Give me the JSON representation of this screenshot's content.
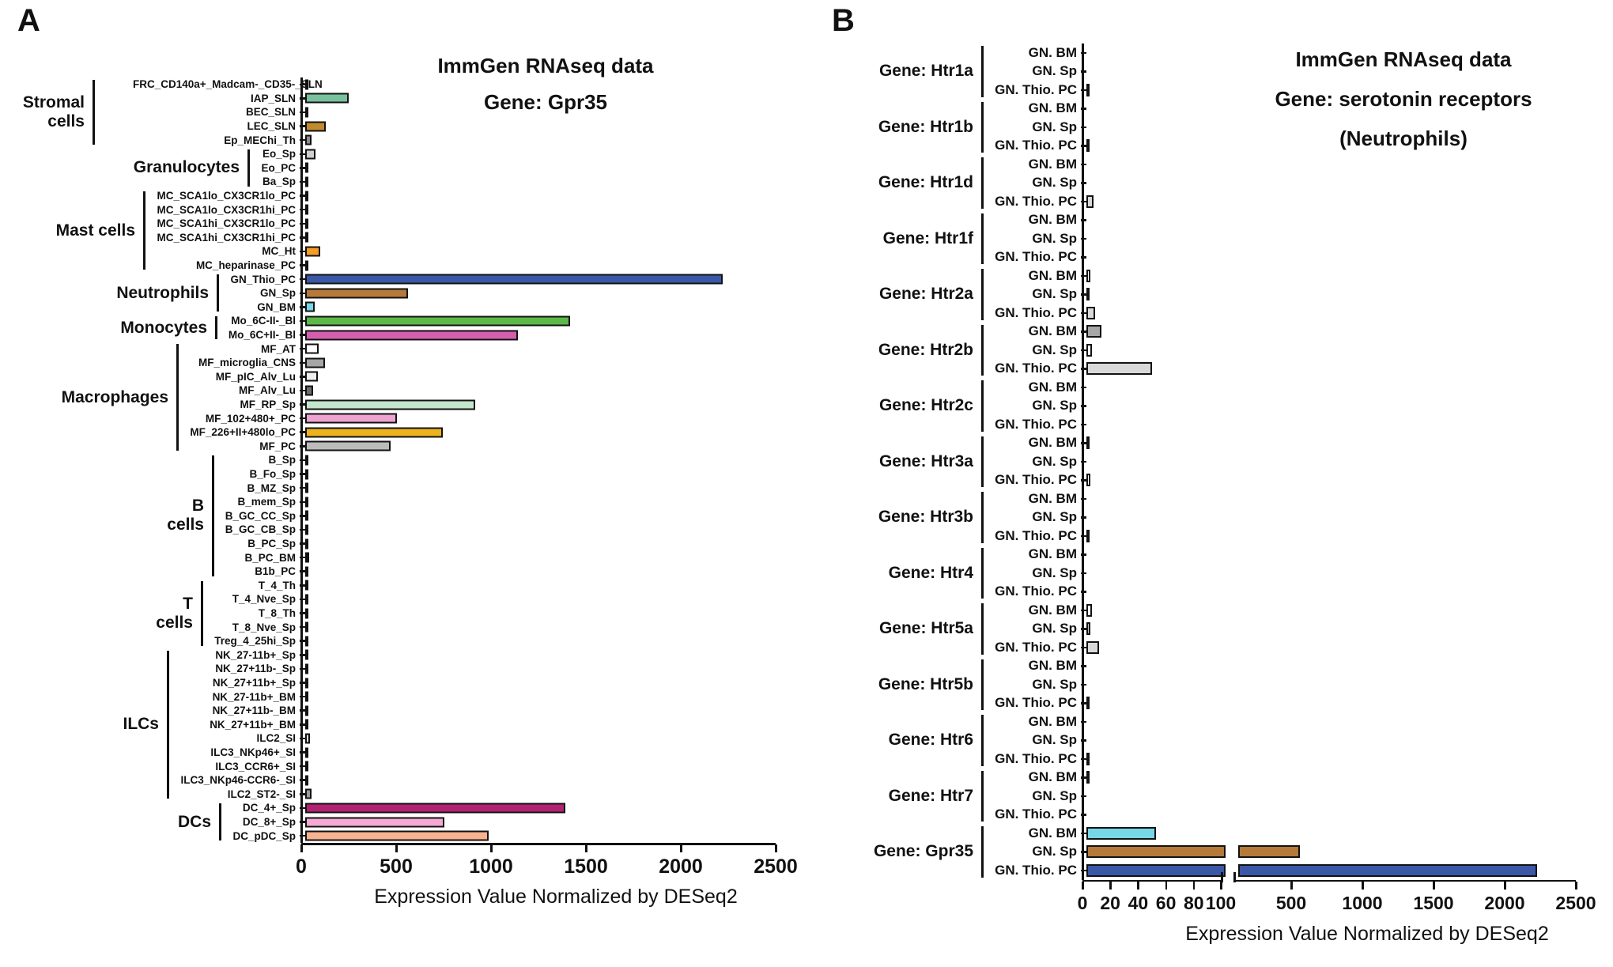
{
  "figure": {
    "background": "#ffffff",
    "axis_color": "#111111"
  },
  "chart_data": [
    {
      "type": "bar",
      "panel_letter": "A",
      "orientation": "horizontal",
      "title_lines": [
        "ImmGen RNAseq data",
        "Gene: Gpr35"
      ],
      "xlabel": "Expression Value Normalized by DESeq2",
      "xlim": [
        0,
        2500
      ],
      "xticks": [
        0,
        500,
        1000,
        1500,
        2000,
        2500
      ],
      "grid": false,
      "groups": [
        {
          "label": "Stromal cells",
          "label_lines": [
            "Stromal",
            "cells"
          ],
          "rows": [
            {
              "label": "FRC_CD140a+_Madcam-_CD35-_SLN",
              "value": 3,
              "color": "#121212"
            },
            {
              "label": "IAP_SLN",
              "value": 230,
              "color": "#79c19e"
            },
            {
              "label": "BEC_SLN",
              "value": 17,
              "color": "#121212"
            },
            {
              "label": "LEC_SLN",
              "value": 107,
              "color": "#c18a2e"
            },
            {
              "label": "Ep_MEChi_Th",
              "value": 33,
              "color": "#8f8f8f"
            }
          ]
        },
        {
          "label": "Granulocytes",
          "label_lines": [
            "Granulocytes"
          ],
          "rows": [
            {
              "label": "Eo_Sp",
              "value": 54,
              "color": "#cfcfcf"
            },
            {
              "label": "Eo_PC",
              "value": 2,
              "color": "#121212"
            },
            {
              "label": "Ba_Sp",
              "value": 2,
              "color": "#121212"
            }
          ]
        },
        {
          "label": "Mast cells",
          "label_lines": [
            "Mast cells"
          ],
          "rows": [
            {
              "label": "MC_SCA1lo_CX3CR1lo_PC",
              "value": 13,
              "color": "#a5682c"
            },
            {
              "label": "MC_SCA1lo_CX3CR1hi_PC",
              "value": 4,
              "color": "#121212"
            },
            {
              "label": "MC_SCA1hi_CX3CR1lo_PC",
              "value": 2,
              "color": "#121212"
            },
            {
              "label": "MC_SCA1hi_CX3CR1hi_PC",
              "value": 5,
              "color": "#121212"
            },
            {
              "label": "MC_Ht",
              "value": 80,
              "color": "#f59d27"
            },
            {
              "label": "MC_heparinase_PC",
              "value": 6,
              "color": "#121212"
            }
          ]
        },
        {
          "label": "Neutrophils",
          "label_lines": [
            "Neutrophils"
          ],
          "rows": [
            {
              "label": "GN_Thio_PC",
              "value": 2200,
              "color": "#3a57a8"
            },
            {
              "label": "GN_Sp",
              "value": 540,
              "color": "#b5793a"
            },
            {
              "label": "GN_BM",
              "value": 50,
              "color": "#76d7e7"
            }
          ]
        },
        {
          "label": "Monocytes",
          "label_lines": [
            "Monocytes"
          ],
          "rows": [
            {
              "label": "Mo_6C-II-_Bl",
              "value": 1395,
              "color": "#5ab947"
            },
            {
              "label": "Mo_6C+II-_Bl",
              "value": 1120,
              "color": "#d55fae"
            }
          ]
        },
        {
          "label": "Macrophages",
          "label_lines": [
            "Macrophages"
          ],
          "rows": [
            {
              "label": "MF_AT",
              "value": 70,
              "color": "#ffffff"
            },
            {
              "label": "MF_microglia_CNS",
              "value": 105,
              "color": "#a6a6a6"
            },
            {
              "label": "MF_pIC_Alv_Lu",
              "value": 65,
              "color": "#efefef"
            },
            {
              "label": "MF_Alv_Lu",
              "value": 40,
              "color": "#6e6e6e"
            },
            {
              "label": "MF_RP_Sp",
              "value": 895,
              "color": "#c3e6cc"
            },
            {
              "label": "MF_102+480+_PC",
              "value": 485,
              "color": "#efa3d1"
            },
            {
              "label": "MF_226+II+480lo_PC",
              "value": 727,
              "color": "#edb31f"
            },
            {
              "label": "MF_PC",
              "value": 450,
              "color": "#bcbcbc"
            }
          ]
        },
        {
          "label": "B cells",
          "label_lines": [
            "B",
            "cells"
          ],
          "rows": [
            {
              "label": "B_Sp",
              "value": 1,
              "color": "#121212"
            },
            {
              "label": "B_Fo_Sp",
              "value": 1,
              "color": "#121212"
            },
            {
              "label": "B_MZ_Sp",
              "value": 2,
              "color": "#121212"
            },
            {
              "label": "B_mem_Sp",
              "value": 1,
              "color": "#121212"
            },
            {
              "label": "B_GC_CC_Sp",
              "value": 4,
              "color": "#121212"
            },
            {
              "label": "B_GC_CB_Sp",
              "value": 2,
              "color": "#121212"
            },
            {
              "label": "B_PC_Sp",
              "value": 1,
              "color": "#121212"
            },
            {
              "label": "B_PC_BM",
              "value": 20,
              "color": "#121212"
            },
            {
              "label": "B1b_PC",
              "value": 2,
              "color": "#121212"
            }
          ]
        },
        {
          "label": "T cells",
          "label_lines": [
            "T",
            "cells"
          ],
          "rows": [
            {
              "label": "T_4_Th",
              "value": 1,
              "color": "#121212"
            },
            {
              "label": "T_4_Nve_Sp",
              "value": 1,
              "color": "#121212"
            },
            {
              "label": "T_8_Th",
              "value": 1,
              "color": "#121212"
            },
            {
              "label": "T_8_Nve_Sp",
              "value": 1,
              "color": "#121212"
            },
            {
              "label": "Treg_4_25hi_Sp",
              "value": 1,
              "color": "#121212"
            }
          ]
        },
        {
          "label": "ILCs",
          "label_lines": [
            "ILCs"
          ],
          "rows": [
            {
              "label": "NK_27-11b+_Sp",
              "value": 1,
              "color": "#121212"
            },
            {
              "label": "NK_27+11b-_Sp",
              "value": 1,
              "color": "#121212"
            },
            {
              "label": "NK_27+11b+_Sp",
              "value": 1,
              "color": "#121212"
            },
            {
              "label": "NK_27-11b+_BM",
              "value": 1,
              "color": "#121212"
            },
            {
              "label": "NK_27+11b-_BM",
              "value": 1,
              "color": "#121212"
            },
            {
              "label": "NK_27+11b+_BM",
              "value": 1,
              "color": "#121212"
            },
            {
              "label": "ILC2_SI",
              "value": 25,
              "color": "#dedede"
            },
            {
              "label": "ILC3_NKp46+_SI",
              "value": 12,
              "color": "#121212"
            },
            {
              "label": "ILC3_CCR6+_SI",
              "value": 2,
              "color": "#121212"
            },
            {
              "label": "ILC3_NKp46-CCR6-_SI",
              "value": 2,
              "color": "#121212"
            },
            {
              "label": "ILC2_ST2-_SI",
              "value": 35,
              "color": "#9b9b9b"
            }
          ]
        },
        {
          "label": "DCs",
          "label_lines": [
            "DCs"
          ],
          "rows": [
            {
              "label": "DC_4+_Sp",
              "value": 1370,
              "color": "#b32271"
            },
            {
              "label": "DC_8+_Sp",
              "value": 735,
              "color": "#f5a9d3"
            },
            {
              "label": "DC_pDC_Sp",
              "value": 965,
              "color": "#f7b28f"
            }
          ]
        }
      ]
    },
    {
      "type": "bar",
      "panel_letter": "B",
      "orientation": "horizontal",
      "title_lines": [
        "ImmGen RNAseq data",
        "Gene: serotonin receptors",
        "(Neutrophils)"
      ],
      "xlabel": "Expression Value Normalized by DESeq2",
      "axis_break": true,
      "left_xlim": [
        0,
        100
      ],
      "left_xticks": [
        0,
        20,
        40,
        60,
        80,
        100
      ],
      "right_xlim": [
        100,
        2500
      ],
      "right_xticks": [
        500,
        1000,
        1500,
        2000,
        2500
      ],
      "grid": false,
      "groups": [
        {
          "label": "Gene: Htr1a",
          "label_lines": [
            "Gene: Htr1a"
          ],
          "rows": [
            {
              "label": "GN. BM",
              "value": 0,
              "color": null
            },
            {
              "label": "GN. Sp",
              "value": 0,
              "color": null
            },
            {
              "label": "GN. Thio. PC",
              "value": 2,
              "color": "#121212"
            }
          ]
        },
        {
          "label": "Gene: Htr1b",
          "label_lines": [
            "Gene: Htr1b"
          ],
          "rows": [
            {
              "label": "GN. BM",
              "value": 0,
              "color": null
            },
            {
              "label": "GN. Sp",
              "value": 0,
              "color": null
            },
            {
              "label": "GN. Thio. PC",
              "value": 2,
              "color": "#121212"
            }
          ]
        },
        {
          "label": "Gene: Htr1d",
          "label_lines": [
            "Gene: Htr1d"
          ],
          "rows": [
            {
              "label": "GN. BM",
              "value": 0,
              "color": null
            },
            {
              "label": "GN. Sp",
              "value": 0,
              "color": null
            },
            {
              "label": "GN. Thio. PC",
              "value": 5,
              "color": "#d9d9d9"
            }
          ]
        },
        {
          "label": "Gene: Htr1f",
          "label_lines": [
            "Gene: Htr1f"
          ],
          "rows": [
            {
              "label": "GN. BM",
              "value": 0,
              "color": null
            },
            {
              "label": "GN. Sp",
              "value": 0,
              "color": null
            },
            {
              "label": "GN. Thio. PC",
              "value": 0,
              "color": null
            }
          ]
        },
        {
          "label": "Gene: Htr2a",
          "label_lines": [
            "Gene: Htr2a"
          ],
          "rows": [
            {
              "label": "GN. BM",
              "value": 3,
              "color": "#ffffff"
            },
            {
              "label": "GN. Sp",
              "value": 1.5,
              "color": "#121212"
            },
            {
              "label": "GN. Thio. PC",
              "value": 6,
              "color": "#d9d9d9"
            }
          ]
        },
        {
          "label": "Gene: Htr2b",
          "label_lines": [
            "Gene: Htr2b"
          ],
          "rows": [
            {
              "label": "GN. BM",
              "value": 11,
              "color": "#a6a6a6"
            },
            {
              "label": "GN. Sp",
              "value": 4,
              "color": "#ffffff"
            },
            {
              "label": "GN. Thio. PC",
              "value": 47,
              "color": "#d9d9d9"
            }
          ]
        },
        {
          "label": "Gene: Htr2c",
          "label_lines": [
            "Gene: Htr2c"
          ],
          "rows": [
            {
              "label": "GN. BM",
              "value": 0,
              "color": null
            },
            {
              "label": "GN. Sp",
              "value": 0,
              "color": null
            },
            {
              "label": "GN. Thio. PC",
              "value": 0,
              "color": null
            }
          ]
        },
        {
          "label": "Gene: Htr3a",
          "label_lines": [
            "Gene: Htr3a"
          ],
          "rows": [
            {
              "label": "GN. BM",
              "value": 1.5,
              "color": "#121212"
            },
            {
              "label": "GN. Sp",
              "value": 0,
              "color": null
            },
            {
              "label": "GN. Thio. PC",
              "value": 3,
              "color": "#ffffff"
            }
          ]
        },
        {
          "label": "Gene: Htr3b",
          "label_lines": [
            "Gene: Htr3b"
          ],
          "rows": [
            {
              "label": "GN. BM",
              "value": 0,
              "color": null
            },
            {
              "label": "GN. Sp",
              "value": 0,
              "color": null
            },
            {
              "label": "GN. Thio. PC",
              "value": 1.5,
              "color": "#121212"
            }
          ]
        },
        {
          "label": "Gene: Htr4",
          "label_lines": [
            "Gene: Htr4"
          ],
          "rows": [
            {
              "label": "GN. BM",
              "value": 0,
              "color": null
            },
            {
              "label": "GN. Sp",
              "value": 0,
              "color": null
            },
            {
              "label": "GN. Thio. PC",
              "value": 0,
              "color": null
            }
          ]
        },
        {
          "label": "Gene: Htr5a",
          "label_lines": [
            "Gene: Htr5a"
          ],
          "rows": [
            {
              "label": "GN. BM",
              "value": 4,
              "color": "#ffffff"
            },
            {
              "label": "GN. Sp",
              "value": 3,
              "color": "#bdbdbd"
            },
            {
              "label": "GN. Thio. PC",
              "value": 9,
              "color": "#d9d9d9"
            }
          ]
        },
        {
          "label": "Gene: Htr5b",
          "label_lines": [
            "Gene: Htr5b"
          ],
          "rows": [
            {
              "label": "GN. BM",
              "value": 0,
              "color": null
            },
            {
              "label": "GN. Sp",
              "value": 0,
              "color": null
            },
            {
              "label": "GN. Thio. PC",
              "value": 1.5,
              "color": "#121212"
            }
          ]
        },
        {
          "label": "Gene: Htr6",
          "label_lines": [
            "Gene: Htr6"
          ],
          "rows": [
            {
              "label": "GN. BM",
              "value": 0,
              "color": null
            },
            {
              "label": "GN. Sp",
              "value": 0,
              "color": null
            },
            {
              "label": "GN. Thio. PC",
              "value": 1.5,
              "color": "#121212"
            }
          ]
        },
        {
          "label": "Gene: Htr7",
          "label_lines": [
            "Gene: Htr7"
          ],
          "rows": [
            {
              "label": "GN. BM",
              "value": 1.5,
              "color": "#121212"
            },
            {
              "label": "GN. Sp",
              "value": 0,
              "color": null
            },
            {
              "label": "GN. Thio. PC",
              "value": 0,
              "color": null
            }
          ]
        },
        {
          "label": "Gene: Gpr35",
          "label_lines": [
            "Gene: Gpr35"
          ],
          "rows": [
            {
              "label": "GN. BM",
              "value": 50,
              "color": "#76d7e7"
            },
            {
              "label": "GN. Sp",
              "value": 535,
              "color": "#b5793a"
            },
            {
              "label": "GN. Thio. PC",
              "value": 2200,
              "color": "#3a57a8"
            }
          ]
        }
      ]
    }
  ]
}
